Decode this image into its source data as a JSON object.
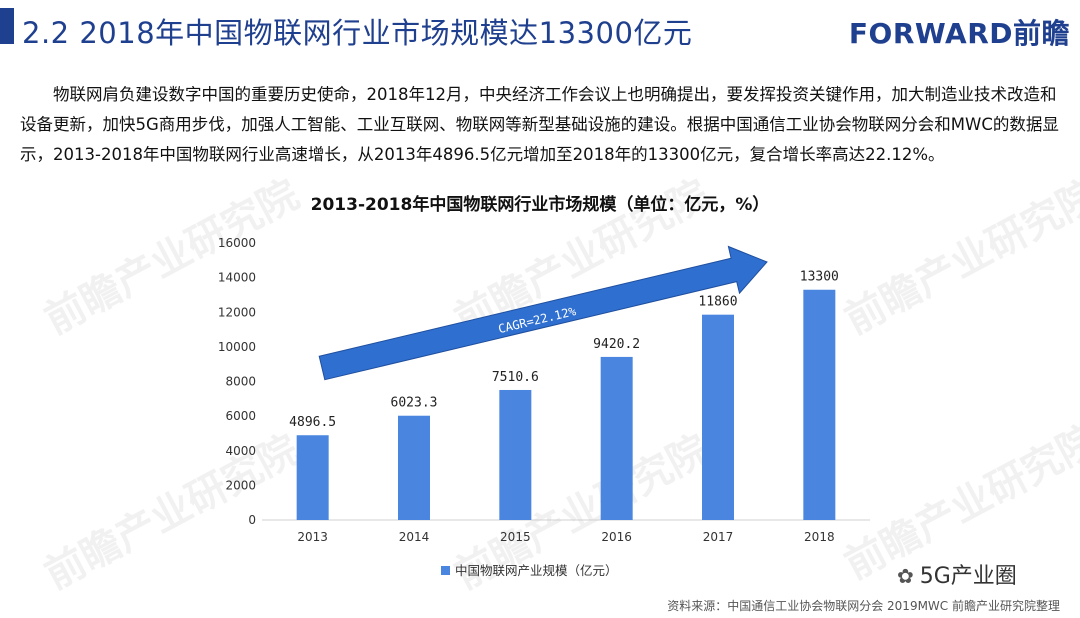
{
  "header": {
    "title": "2.2 2018年中国物联网行业市场规模达13300亿元",
    "logo": "FORWARD前瞻"
  },
  "intro_text": "物联网肩负建设数字中国的重要历史使命，2018年12月，中央经济工作会议上也明确提出，要发挥投资关键作用，加大制造业技术改造和设备更新，加快5G商用步伐，加强人工智能、工业互联网、物联网等新型基础设施的建设。根据中国通信工业协会物联网分会和MWC的数据显示，2013-2018年中国物联网行业高速增长，从2013年4896.5亿元增加至2018年的13300亿元，复合增长率高达22.12%。",
  "chart_data": {
    "type": "bar",
    "title": "2013-2018年中国物联网行业市场规模（单位：亿元，%）",
    "categories": [
      "2013",
      "2014",
      "2015",
      "2016",
      "2017",
      "2018"
    ],
    "series": [
      {
        "name": "中国物联网产业规模（亿元）",
        "values": [
          4896.5,
          6023.3,
          7510.6,
          9420.2,
          11860,
          13300
        ],
        "labels": [
          "4896.5",
          "6023.3",
          "7510.6",
          "9420.2",
          "11860",
          "13300"
        ]
      }
    ],
    "ylim": [
      0,
      16000
    ],
    "yticks": [
      0,
      2000,
      4000,
      6000,
      8000,
      10000,
      12000,
      14000,
      16000
    ],
    "legend_position": "bottom-center",
    "annotation": "CAGR=22.12%",
    "colors": {
      "bar": "#4a86e0",
      "arrow": "#2f6fd0",
      "arrow_stroke": "#1f4f9f"
    }
  },
  "watermark_text": "前瞻产业研究院",
  "wechat": "5G产业圈",
  "source": "资料来源：中国通信工业协会物联网分会 2019MWC 前瞻产业研究院整理"
}
